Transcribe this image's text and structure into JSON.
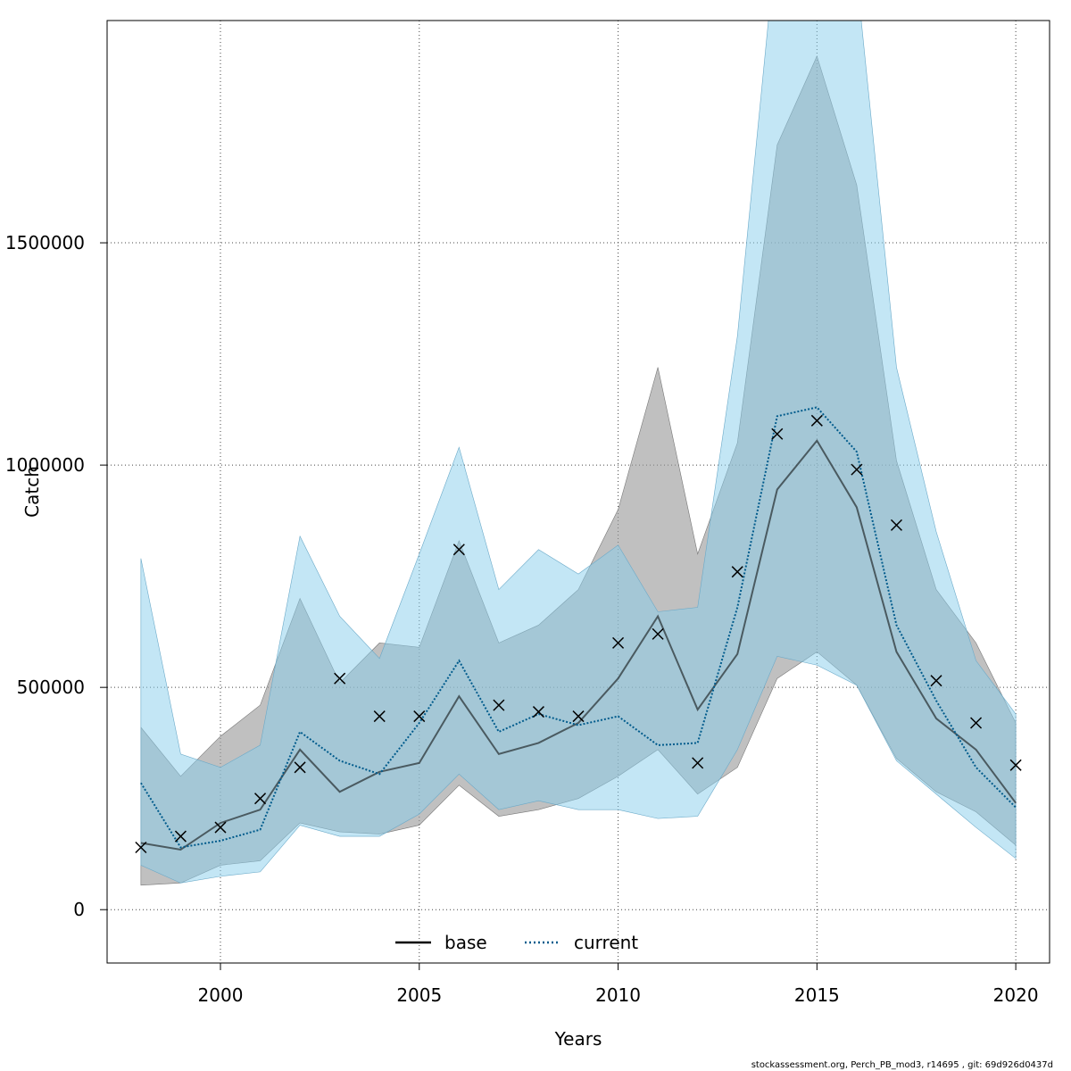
{
  "chart_data": {
    "type": "line",
    "title": "",
    "xlabel": "Years",
    "ylabel": "Catch",
    "xlim": [
      1997.15,
      2020.85
    ],
    "ylim": [
      -120000,
      2000000
    ],
    "x_ticks": [
      2000,
      2005,
      2010,
      2015,
      2020
    ],
    "y_ticks": [
      0,
      500000,
      1000000,
      1500000
    ],
    "x_tick_labels": [
      "2000",
      "2005",
      "2010",
      "2015",
      "2020"
    ],
    "y_tick_labels": [
      "0",
      "500000",
      "1000000",
      "1500000"
    ],
    "grid": true,
    "legend_position": "bottom-center",
    "years": [
      1998,
      1999,
      2000,
      2001,
      2002,
      2003,
      2004,
      2005,
      2006,
      2007,
      2008,
      2009,
      2010,
      2011,
      2012,
      2013,
      2014,
      2015,
      2016,
      2017,
      2018,
      2019,
      2020
    ],
    "series": [
      {
        "name": "base",
        "line_style": "solid",
        "color": "#000000",
        "band_color": "#999999",
        "values": [
          150000,
          135000,
          195000,
          225000,
          360000,
          265000,
          310000,
          330000,
          480000,
          350000,
          375000,
          420000,
          520000,
          660000,
          450000,
          575000,
          945000,
          1055000,
          905000,
          580000,
          430000,
          360000,
          240000
        ],
        "lower": [
          55000,
          60000,
          100000,
          110000,
          195000,
          175000,
          170000,
          190000,
          280000,
          210000,
          225000,
          250000,
          300000,
          360000,
          260000,
          320000,
          520000,
          580000,
          505000,
          340000,
          265000,
          220000,
          145000
        ],
        "upper": [
          410000,
          300000,
          390000,
          460000,
          700000,
          510000,
          600000,
          590000,
          830000,
          600000,
          640000,
          720000,
          900000,
          1220000,
          800000,
          1050000,
          1720000,
          1920000,
          1630000,
          1010000,
          720000,
          600000,
          420000
        ]
      },
      {
        "name": "current",
        "line_style": "dotted",
        "color": "#005b8c",
        "band_color": "#87ceeb",
        "values": [
          285000,
          140000,
          155000,
          180000,
          400000,
          335000,
          305000,
          420000,
          560000,
          400000,
          440000,
          415000,
          435000,
          370000,
          375000,
          680000,
          1110000,
          1130000,
          1030000,
          640000,
          470000,
          320000,
          230000
        ],
        "lower": [
          100000,
          60000,
          75000,
          85000,
          190000,
          165000,
          165000,
          215000,
          305000,
          225000,
          245000,
          225000,
          225000,
          205000,
          210000,
          360000,
          570000,
          550000,
          505000,
          335000,
          260000,
          185000,
          115000
        ],
        "upper": [
          790000,
          350000,
          320000,
          370000,
          840000,
          660000,
          565000,
          800000,
          1040000,
          720000,
          810000,
          755000,
          820000,
          670000,
          680000,
          1290000,
          2200000,
          2300000,
          2100000,
          1220000,
          850000,
          560000,
          440000
        ]
      }
    ],
    "observations": {
      "marker": "x",
      "color": "#000000",
      "values": [
        140000,
        165000,
        185000,
        250000,
        320000,
        520000,
        435000,
        435000,
        810000,
        460000,
        445000,
        435000,
        600000,
        620000,
        330000,
        760000,
        1070000,
        1100000,
        990000,
        865000,
        515000,
        420000,
        325000
      ]
    },
    "footer": "stockassessment.org, Perch_PB_mod3, r14695 , git: 69d926d0437d"
  }
}
